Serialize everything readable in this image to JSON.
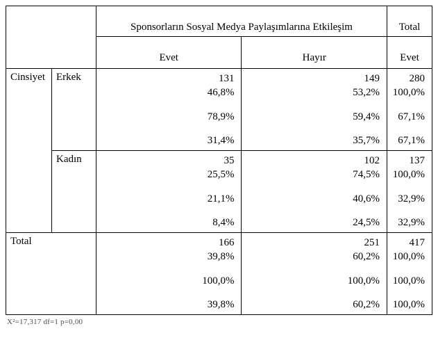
{
  "header": {
    "main": "Sponsorların Sosyal Medya Paylaşımlarına Etkileşim",
    "total": "Total",
    "col_evet": "Evet",
    "col_hayir": "Hayır",
    "tot_sub": "Evet"
  },
  "stub": {
    "cinsiyet": "Cinsiyet",
    "erkek": "Erkek",
    "kadin": "Kadın",
    "total": "Total"
  },
  "rows": {
    "erkek": {
      "evet": {
        "n": "131",
        "p1": "46,8%",
        "p2": "78,9%",
        "p3": "31,4%"
      },
      "hayir": {
        "n": "149",
        "p1": "53,2%",
        "p2": "59,4%",
        "p3": "35,7%"
      },
      "total": {
        "n": "280",
        "p1": "100,0%",
        "p2": "67,1%",
        "p3": "67,1%"
      }
    },
    "kadin": {
      "evet": {
        "n": "35",
        "p1": "25,5%",
        "p2": "21,1%",
        "p3": "8,4%"
      },
      "hayir": {
        "n": "102",
        "p1": "74,5%",
        "p2": "40,6%",
        "p3": "24,5%"
      },
      "total": {
        "n": "137",
        "p1": "100,0%",
        "p2": "32,9%",
        "p3": "32,9%"
      }
    },
    "total": {
      "evet": {
        "n": "166",
        "p1": "39,8%",
        "p2": "100,0%",
        "p3": "39,8%"
      },
      "hayir": {
        "n": "251",
        "p1": "60,2%",
        "p2": "100,0%",
        "p3": "60,2%"
      },
      "total": {
        "n": "417",
        "p1": "100,0%",
        "p2": "100,0%",
        "p3": "100,0%"
      }
    }
  },
  "footnote": "X²=17,317  df=1  p=0,00"
}
